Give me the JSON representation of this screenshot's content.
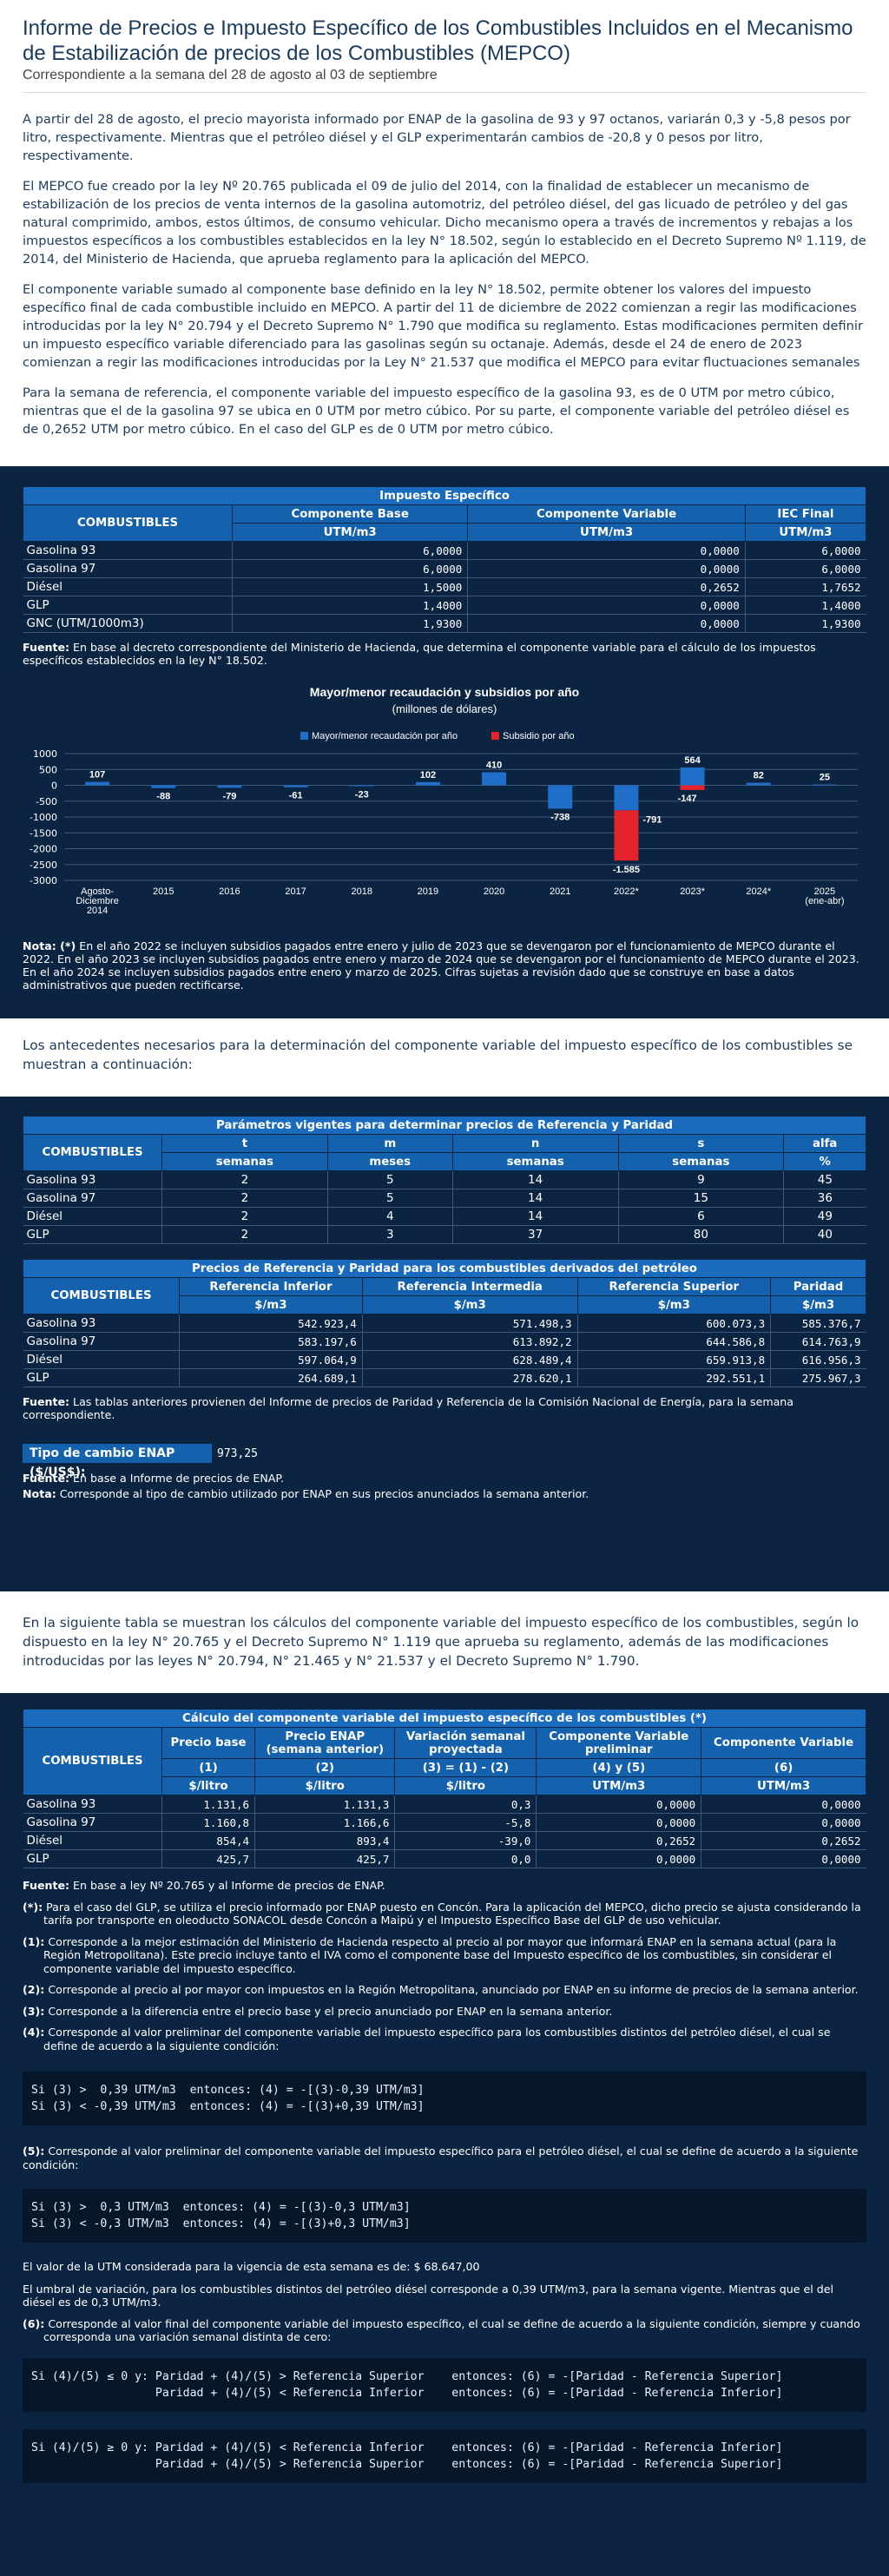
{
  "header": {
    "title": "Informe de Precios e Impuesto Específico de los Combustibles Incluidos en el Mecanismo de Estabilización de precios de los Combustibles (MEPCO)",
    "subtitle": "Correspondiente a la semana del 28 de agosto al 03 de septiembre",
    "paragraphs": [
      "A partir del 28 de agosto, el precio mayorista informado por ENAP de la gasolina de 93 y 97 octanos, variarán 0,3 y -5,8 pesos por litro, respectivamente. Mientras que el petróleo diésel y el GLP experimentarán cambios de -20,8 y 0 pesos por litro, respectivamente.",
      "El MEPCO fue creado por la ley Nº 20.765 publicada el 09 de julio del 2014, con la finalidad de establecer un mecanismo de estabilización de los precios de venta internos de la gasolina automotriz, del petróleo diésel, del gas licuado de petróleo y del gas natural comprimido, ambos, estos últimos, de consumo vehicular. Dicho mecanismo opera a través de incrementos y rebajas a los impuestos específicos a los combustibles establecidos en la ley N° 18.502, según lo establecido en el Decreto Supremo Nº 1.119, de 2014, del Ministerio de Hacienda, que aprueba reglamento para la aplicación del MEPCO.",
      "El componente variable sumado al componente base definido en la ley N° 18.502, permite obtener los valores del impuesto específico final de cada combustible incluido en MEPCO. A partir del 11 de diciembre de 2022 comienzan a regir las modificaciones introducidas por la ley N° 20.794 y el Decreto Supremo N° 1.790 que modifica su reglamento. Estas modificaciones permiten definir un impuesto específico variable diferenciado para las gasolinas según su octanaje. Además, desde el 24 de enero de 2023 comienzan a regir las modificaciones introducidas por la Ley N° 21.537 que modifica el MEPCO para evitar fluctuaciones semanales",
      "Para la semana de referencia, el componente variable del impuesto específico de la gasolina 93, es de 0 UTM por metro cúbico, mientras que el de la gasolina 97 se ubica en 0 UTM por metro cúbico. Por su parte, el componente variable del petróleo diésel es de 0,2652 UTM por metro cúbico. En el caso del GLP es de 0 UTM por metro cúbico."
    ]
  },
  "table1": {
    "title": "Impuesto Específico",
    "col_combustibles": "COMBUSTIBLES",
    "cols": [
      "Componente Base",
      "Componente Variable",
      "IEC Final"
    ],
    "units": [
      "UTM/m3",
      "UTM/m3",
      "UTM/m3"
    ],
    "rows": [
      {
        "name": "Gasolina 93",
        "vals": [
          "6,0000",
          "0,0000",
          "6,0000"
        ]
      },
      {
        "name": "Gasolina 97",
        "vals": [
          "6,0000",
          "0,0000",
          "6,0000"
        ]
      },
      {
        "name": "Diésel",
        "vals": [
          "1,5000",
          "0,2652",
          "1,7652"
        ]
      },
      {
        "name": "GLP",
        "vals": [
          "1,4000",
          "0,0000",
          "1,4000"
        ]
      },
      {
        "name": "GNC (UTM/1000m3)",
        "vals": [
          "1,9300",
          "0,0000",
          "1,9300"
        ]
      }
    ],
    "note_label": "Fuente:",
    "note": " En base al decreto correspondiente del Ministerio de Hacienda, que determina el componente variable para el cálculo de los impuestos específicos establecidos en la ley N° 18.502."
  },
  "chart_data": {
    "type": "bar",
    "title": "Mayor/menor recaudación y subsidios por año",
    "subtitle": "(millones de dólares)",
    "categories": [
      "Agosto-\nDiciembre\n2014",
      "2015",
      "2016",
      "2017",
      "2018",
      "2019",
      "2020",
      "2021",
      "2022*",
      "2023*",
      "2024*",
      "2025\n(ene-abr)"
    ],
    "series": [
      {
        "name": "Mayor/menor recaudación por año",
        "color": "#1f6ec9",
        "values": [
          107,
          -88,
          -79,
          -61,
          -23,
          102,
          410,
          -738,
          -791,
          564,
          82,
          25
        ]
      },
      {
        "name": "Subsidio por año",
        "color": "#e3242b",
        "values": [
          0,
          0,
          0,
          0,
          0,
          0,
          0,
          0,
          -1585,
          -147,
          0,
          0
        ]
      }
    ],
    "data_labels": [
      "107",
      "-88",
      "-79",
      "-61",
      "-23",
      "102",
      "410",
      "-738",
      "-1.585",
      "564",
      "82",
      "25"
    ],
    "extra_labels": [
      {
        "index": 8,
        "text": "-791"
      },
      {
        "index": 9,
        "text": "-147"
      }
    ],
    "yticks": [
      1000,
      500,
      0,
      -500,
      -1000,
      -1500,
      -2000,
      -2500,
      -3000
    ],
    "ylim": [
      -3000,
      1000
    ],
    "legend": "top-center",
    "grid": true
  },
  "chart_note": {
    "label": "Nota: (*)",
    "text": " En el año 2022 se incluyen subsidios pagados entre enero y julio de 2023 que se devengaron por el funcionamiento de MEPCO durante el 2022. En el año 2023 se incluyen subsidios pagados entre enero y marzo de 2024 que se devengaron por el funcionamiento de MEPCO durante el 2023. En el año 2024 se incluyen subsidios pagados entre enero y marzo de 2025. Cifras sujetas a revisión dado que se construye en base a datos administrativos que pueden rectificarse."
  },
  "intro2": "Los antecedentes necesarios para la determinación del componente variable del impuesto específico de los combustibles se muestran a continuación:",
  "table2": {
    "title": "Parámetros vigentes para determinar precios de Referencia y Paridad",
    "col_combustibles": "COMBUSTIBLES",
    "cols": [
      "t",
      "m",
      "n",
      "s",
      "alfa"
    ],
    "units": [
      "semanas",
      "meses",
      "semanas",
      "semanas",
      "%"
    ],
    "rows": [
      {
        "name": "Gasolina 93",
        "vals": [
          "2",
          "5",
          "14",
          "9",
          "45"
        ]
      },
      {
        "name": "Gasolina 97",
        "vals": [
          "2",
          "5",
          "14",
          "15",
          "36"
        ]
      },
      {
        "name": "Diésel",
        "vals": [
          "2",
          "4",
          "14",
          "6",
          "49"
        ]
      },
      {
        "name": "GLP",
        "vals": [
          "2",
          "3",
          "37",
          "80",
          "40"
        ]
      }
    ]
  },
  "table3": {
    "title": "Precios de Referencia y Paridad para los combustibles derivados del petróleo",
    "col_combustibles": "COMBUSTIBLES",
    "cols": [
      "Referencia Inferior",
      "Referencia Intermedia",
      "Referencia Superior",
      "Paridad"
    ],
    "units": [
      "$/m3",
      "$/m3",
      "$/m3",
      "$/m3"
    ],
    "rows": [
      {
        "name": "Gasolina 93",
        "vals": [
          "542.923,4",
          "571.498,3",
          "600.073,3",
          "585.376,7"
        ]
      },
      {
        "name": "Gasolina 97",
        "vals": [
          "583.197,6",
          "613.892,2",
          "644.586,8",
          "614.763,9"
        ]
      },
      {
        "name": "Diésel",
        "vals": [
          "597.064,9",
          "628.489,4",
          "659.913,8",
          "616.956,3"
        ]
      },
      {
        "name": "GLP",
        "vals": [
          "264.689,1",
          "278.620,1",
          "292.551,1",
          "275.967,3"
        ]
      }
    ],
    "note_label": "Fuente:",
    "note": " Las tablas anteriores provienen del Informe de precios de Paridad y Referencia de la Comisión Nacional de Energía, para la semana correspondiente."
  },
  "fx": {
    "label": "Tipo de cambio ENAP ($/US$):",
    "value": "973,25",
    "source_label": "Fuente:",
    "source": " En base a Informe de precios de ENAP.",
    "note_label": "Nota:",
    "note": " Corresponde al tipo de cambio utilizado por ENAP en sus precios anunciados la semana anterior."
  },
  "intro3": "En la siguiente tabla se muestran los cálculos del componente variable del impuesto específico de los combustibles, según lo dispuesto en la ley N° 20.765 y el Decreto Supremo N° 1.119 que aprueba su reglamento, además de las modificaciones introducidas por las leyes N° 20.794, N° 21.465 y N° 21.537 y el Decreto Supremo N° 1.790.",
  "table4": {
    "title": "Cálculo del componente variable del impuesto específico de los combustibles (*)",
    "col_combustibles": "COMBUSTIBLES",
    "cols": [
      "Precio base",
      "Precio ENAP\n(semana anterior)",
      "Variación semanal\nproyectada",
      "Componente Variable\npreliminar",
      "Componente Variable"
    ],
    "formulas": [
      "(1)",
      "(2)",
      "(3) = (1) - (2)",
      "(4) y (5)",
      "(6)"
    ],
    "units": [
      "$/litro",
      "$/litro",
      "$/litro",
      "UTM/m3",
      "UTM/m3"
    ],
    "rows": [
      {
        "name": "Gasolina 93",
        "vals": [
          "1.131,6",
          "1.131,3",
          "0,3",
          "0,0000",
          "0,0000"
        ]
      },
      {
        "name": "Gasolina 97",
        "vals": [
          "1.160,8",
          "1.166,6",
          "-5,8",
          "0,0000",
          "0,0000"
        ]
      },
      {
        "name": "Diésel",
        "vals": [
          "854,4",
          "893,4",
          "-39,0",
          "0,2652",
          "0,2652"
        ]
      },
      {
        "name": "GLP",
        "vals": [
          "425,7",
          "425,7",
          "0,0",
          "0,0000",
          "0,0000"
        ]
      }
    ]
  },
  "footnotes": {
    "source_label": "Fuente:",
    "source": " En base a ley Nº 20.765 y al Informe de precios de ENAP.",
    "items": [
      {
        "label": "(*):",
        "text": " Para el caso del GLP, se utiliza el precio informado por ENAP puesto en Concón. Para la aplicación del MEPCO, dicho precio se ajusta considerando la tarifa por transporte en oleoducto SONACOL desde Concón a Maipú y el Impuesto Específico Base del GLP de uso vehicular."
      },
      {
        "label": "(1):",
        "text": " Corresponde a la mejor estimación del Ministerio de Hacienda respecto al precio al por mayor que informará ENAP en la semana actual (para la Región Metropolitana). Este precio incluye tanto el IVA como el componente base del Impuesto específico de los combustibles, sin considerar el componente variable del impuesto específico."
      },
      {
        "label": "(2):",
        "text": " Corresponde al precio al por mayor con impuestos en la Región Metropolitana, anunciado por ENAP en su informe de precios de la semana anterior."
      },
      {
        "label": "(3):",
        "text": " Corresponde a la diferencia entre el precio base y el precio anunciado por ENAP en la semana anterior."
      },
      {
        "label": "(4):",
        "text": " Corresponde al valor preliminar del componente variable del impuesto específico para los combustibles distintos del petróleo diésel, el cual se define de acuerdo a la siguiente condición:"
      }
    ],
    "code4": "Si (3) >  0,39 UTM/m3  entonces: (4) = -[(3)-0,39 UTM/m3]\nSi (3) < -0,39 UTM/m3  entonces: (4) = -[(3)+0,39 UTM/m3]",
    "item5_label": "(5):",
    "item5": " Corresponde al valor preliminar del componente variable del impuesto específico para el petróleo diésel, el cual se define de acuerdo a la siguiente condición:",
    "code5": "Si (3) >  0,3 UTM/m3  entonces: (4) = -[(3)-0,3 UTM/m3]\nSi (3) < -0,3 UTM/m3  entonces: (4) = -[(3)+0,3 UTM/m3]",
    "utm": "El valor de la UTM considerada para la vigencia de esta semana es de: $ 68.647,00",
    "umbral": "El umbral de variación, para los combustibles distintos del petróleo diésel corresponde a 0,39 UTM/m3, para la semana vigente. Mientras que el del diésel es de 0,3 UTM/m3.",
    "item6_label": "(6):",
    "item6": " Corresponde al valor final del componente variable del impuesto específico, el cual se define de acuerdo a la siguiente condición, siempre y cuando corresponda una variación semanal distinta de cero:",
    "code6a": "Si (4)/(5) ≤ 0 y: Paridad + (4)/(5) > Referencia Superior    entonces: (6) = -[Paridad - Referencia Superior]\n                  Paridad + (4)/(5) < Referencia Inferior    entonces: (6) = -[Paridad - Referencia Inferior]",
    "code6b": "Si (4)/(5) ≥ 0 y: Paridad + (4)/(5) < Referencia Inferior    entonces: (6) = -[Paridad - Referencia Inferior]\n                  Paridad + (4)/(5) > Referencia Superior    entonces: (6) = -[Paridad - Referencia Superior]"
  }
}
